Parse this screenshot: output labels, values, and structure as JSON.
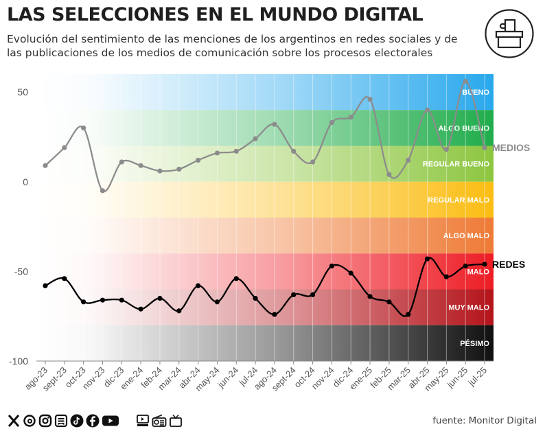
{
  "header": {
    "title": "LAS SELECCIONES EN EL MUNDO DIGITAL",
    "subtitle": "Evolución del sentimiento de las menciones de los argentinos en redes sociales y de las publicaciones de los medios de comunicación sobre los procesos electorales"
  },
  "footer": {
    "source_label": "fuente:",
    "source_value": "Monitor Digital",
    "social_icons": [
      "x-icon",
      "threads-icon",
      "instagram-icon",
      "substack-icon",
      "tiktok-icon",
      "facebook-icon",
      "youtube-icon"
    ],
    "media_icons": [
      "podcast-icon",
      "radio-icon",
      "tv-icon"
    ]
  },
  "chart_data": {
    "type": "line",
    "title": "LAS SELECCIONES EN EL MUNDO DIGITAL",
    "xlabel": "",
    "ylabel": "",
    "ylim": [
      -100,
      60
    ],
    "yticks": [
      50,
      0,
      -50,
      -100
    ],
    "categories": [
      "ago-23",
      "sept-23",
      "oct-23",
      "nov-23",
      "dic-23",
      "ene-24",
      "feb-24",
      "mar-24",
      "abr-24",
      "may-24",
      "jun-24",
      "jul-24",
      "ago-24",
      "sept-24",
      "oct-24",
      "nov-24",
      "dic-24",
      "ene-25",
      "feb-25",
      "mar-25",
      "abr-25",
      "may-25",
      "jun-25",
      "jul-25"
    ],
    "series": [
      {
        "name": "MEDIOS",
        "color": "#8c8c8c",
        "values": [
          9,
          19,
          30,
          -5,
          11,
          9,
          6,
          7,
          12,
          16,
          17,
          24,
          32,
          17,
          11,
          33,
          36,
          46,
          4,
          12,
          40,
          18,
          56,
          19
        ]
      },
      {
        "name": "REDES",
        "color": "#000000",
        "values": [
          -58,
          -54,
          -67,
          -66,
          -66,
          -71,
          -65,
          -72,
          -58,
          -67,
          -54,
          -65,
          -74,
          -63,
          -63,
          -47,
          -51,
          -64,
          -67,
          -74,
          -43,
          -53,
          -47,
          -46
        ]
      }
    ],
    "bands": [
      {
        "label": "BUENO",
        "from": 40,
        "to": 60,
        "color": "#29a8ec"
      },
      {
        "label": "ALGO BUENO",
        "from": 20,
        "to": 40,
        "color": "#1fac4b"
      },
      {
        "label": "REGULAR BUENO",
        "from": 0,
        "to": 20,
        "color": "#8dc63f"
      },
      {
        "label": "REGULAR MALO",
        "from": -20,
        "to": 0,
        "color": "#fbbd13"
      },
      {
        "label": "ALGO MALO",
        "from": -40,
        "to": -20,
        "color": "#ee7a35"
      },
      {
        "label": "MALO",
        "from": -60,
        "to": -40,
        "color": "#ed1c24"
      },
      {
        "label": "MUY MALO",
        "from": -80,
        "to": -60,
        "color": "#b3141a"
      },
      {
        "label": "PÉSIMO",
        "from": -100,
        "to": -80,
        "color": "#101010"
      }
    ]
  }
}
